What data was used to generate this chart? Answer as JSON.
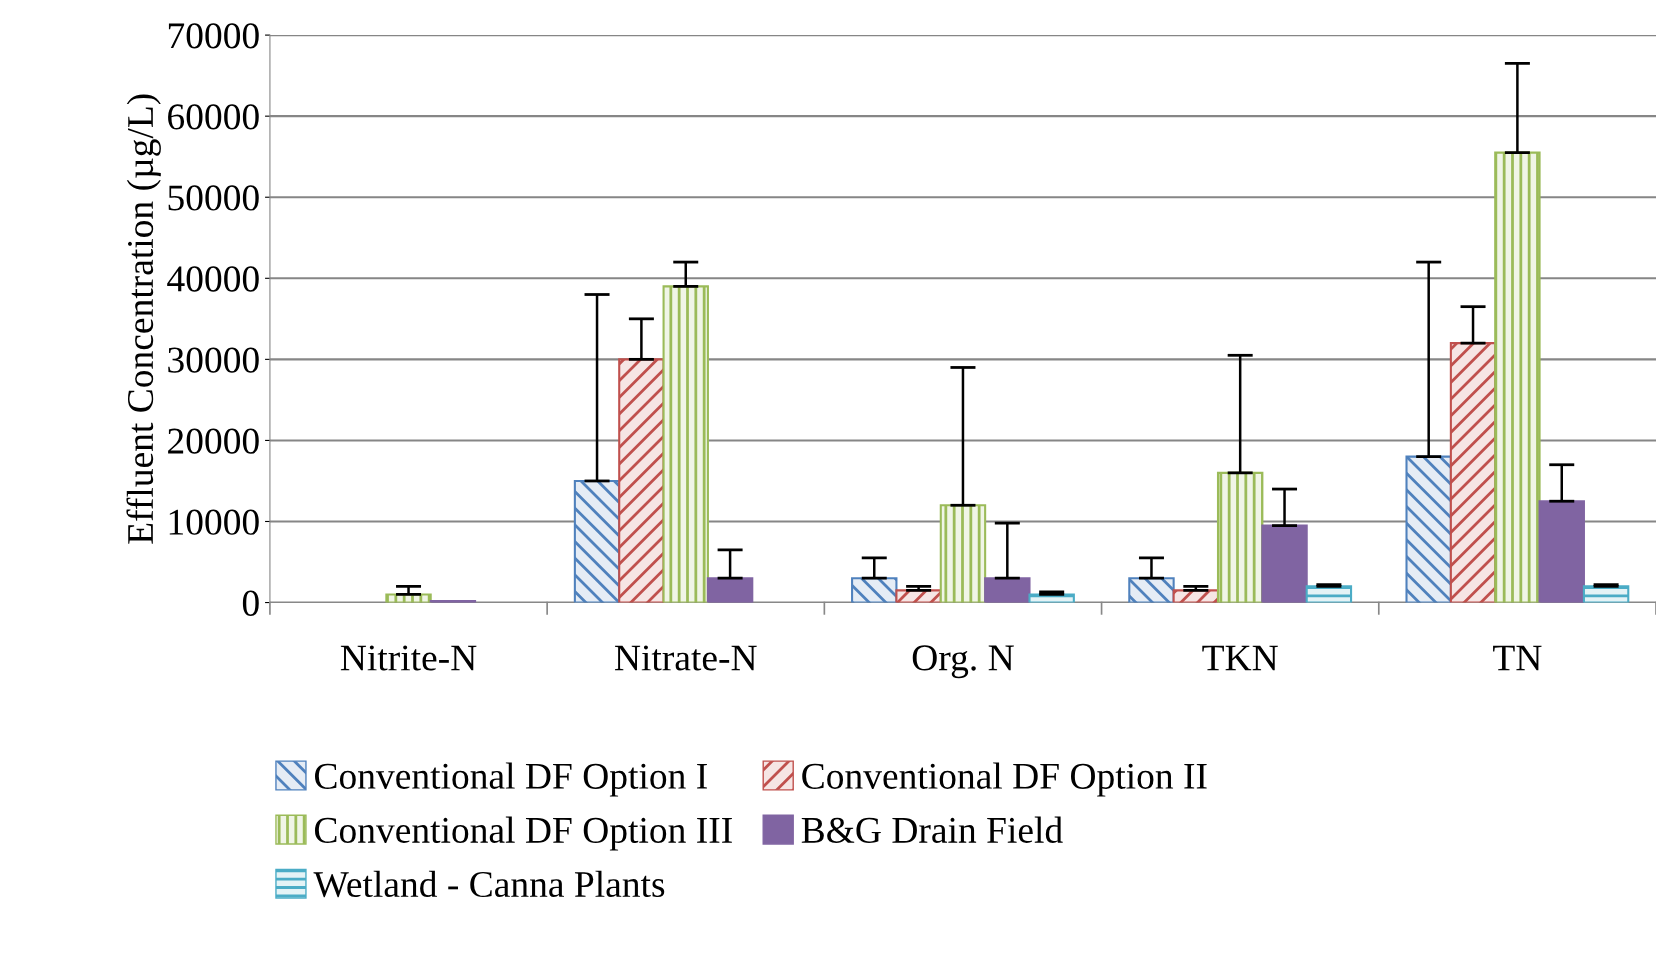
{
  "chart_data": {
    "type": "bar",
    "ylabel": "Effluent Concentration (µg/L)",
    "categories": [
      "Nitrite-N",
      "Nitrate-N",
      "Org. N",
      "TKN",
      "TN"
    ],
    "ylim": [
      0,
      70000
    ],
    "yticks": [
      0,
      10000,
      20000,
      30000,
      40000,
      50000,
      60000,
      70000
    ],
    "grid": "y",
    "legend": "bottom",
    "series": [
      {
        "name": "Conventional DF Option I",
        "color": "#4f81bd",
        "values": [
          null,
          15000,
          3000,
          3000,
          18000
        ],
        "errors": [
          null,
          [
            15000,
            38000
          ],
          [
            3000,
            5500
          ],
          [
            3000,
            5500
          ],
          [
            18000,
            42000
          ]
        ]
      },
      {
        "name": "Conventional DF Option II",
        "color": "#c0504d",
        "values": [
          null,
          30000,
          1500,
          1500,
          32000
        ],
        "errors": [
          null,
          [
            30000,
            35000
          ],
          [
            1500,
            2000
          ],
          [
            1500,
            2000
          ],
          [
            32000,
            36500
          ]
        ]
      },
      {
        "name": "Conventional DF Option III",
        "color": "#9bbb59",
        "values": [
          1000,
          39000,
          12000,
          16000,
          55500
        ],
        "errors": [
          [
            1000,
            2000
          ],
          [
            39000,
            42000
          ],
          [
            12000,
            29000
          ],
          [
            16000,
            30500
          ],
          [
            55500,
            66500
          ]
        ]
      },
      {
        "name": "B&G Drain Field",
        "color": "#8064a2",
        "values": [
          200,
          3000,
          3000,
          9500,
          12500
        ],
        "errors": [
          null,
          [
            3000,
            6500
          ],
          [
            3000,
            9800
          ],
          [
            9500,
            14000
          ],
          [
            12500,
            17000
          ]
        ]
      },
      {
        "name": "Wetland - Canna Plants",
        "color": "#4bacc6",
        "values": [
          null,
          null,
          1000,
          2000,
          2000
        ],
        "errors": [
          null,
          null,
          [
            1000,
            1300
          ],
          [
            2000,
            2200
          ],
          [
            2000,
            2200
          ]
        ]
      }
    ]
  }
}
